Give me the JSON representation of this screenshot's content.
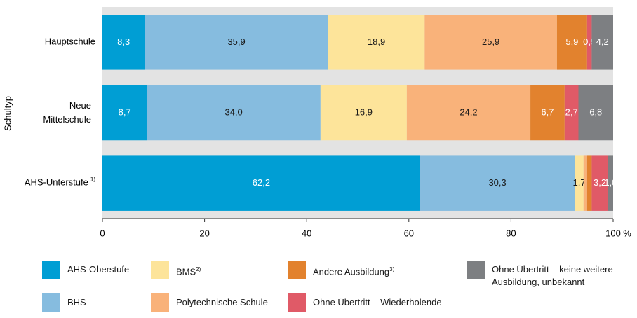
{
  "chart_data": {
    "type": "stacked-barh",
    "y_label": "Schultyp",
    "categories": [
      "Hauptschule",
      "Neue Mittelschule",
      "AHS-Unterstufe"
    ],
    "category_notes": [
      null,
      null,
      "1)"
    ],
    "series": [
      {
        "name": "AHS-Oberstufe",
        "color": "#009ed4",
        "label_color": "#ffffff",
        "values": [
          8.3,
          8.7,
          62.2
        ],
        "value_labels": [
          "8,3",
          "8,7",
          "62,2"
        ]
      },
      {
        "name": "BHS",
        "color": "#86bcdf",
        "label_color": "#1a1a1a",
        "values": [
          35.9,
          34.0,
          30.3
        ],
        "value_labels": [
          "35,9",
          "34,0",
          "30,3"
        ]
      },
      {
        "name": "BMS",
        "name_note": "2)",
        "color": "#fde49a",
        "label_color": "#1a1a1a",
        "values": [
          18.9,
          16.9,
          1.7
        ],
        "value_labels": [
          "18,9",
          "16,9",
          "1,7"
        ]
      },
      {
        "name": "Polytechnische Schule",
        "color": "#f9b27a",
        "label_color": "#1a1a1a",
        "values": [
          25.9,
          24.2,
          0.7
        ],
        "value_labels": [
          "25,9",
          "24,2",
          null
        ]
      },
      {
        "name": "Andere Ausbildung",
        "name_note": "3)",
        "color": "#e2822e",
        "label_color": "#ffffff",
        "values": [
          5.9,
          6.7,
          0.9
        ],
        "value_labels": [
          "5,9",
          "6,7",
          null
        ]
      },
      {
        "name": "Ohne Übertritt – Wiederholende",
        "color": "#e05a67",
        "label_color": "#ffffff",
        "values": [
          0.9,
          2.7,
          3.2
        ],
        "value_labels": [
          "0,9",
          "2,7",
          "3,2"
        ]
      },
      {
        "name": "Ohne Übertritt – keine weitere Ausbildung, unbekannt",
        "color": "#7d7f82",
        "label_color": "#ffffff",
        "values": [
          4.2,
          6.8,
          1.0
        ],
        "value_labels": [
          "4,2",
          "6,8",
          "1,0"
        ]
      }
    ],
    "xlim": [
      0,
      100
    ],
    "xticks": [
      0,
      20,
      40,
      60,
      80,
      100
    ],
    "x_unit": "%"
  }
}
